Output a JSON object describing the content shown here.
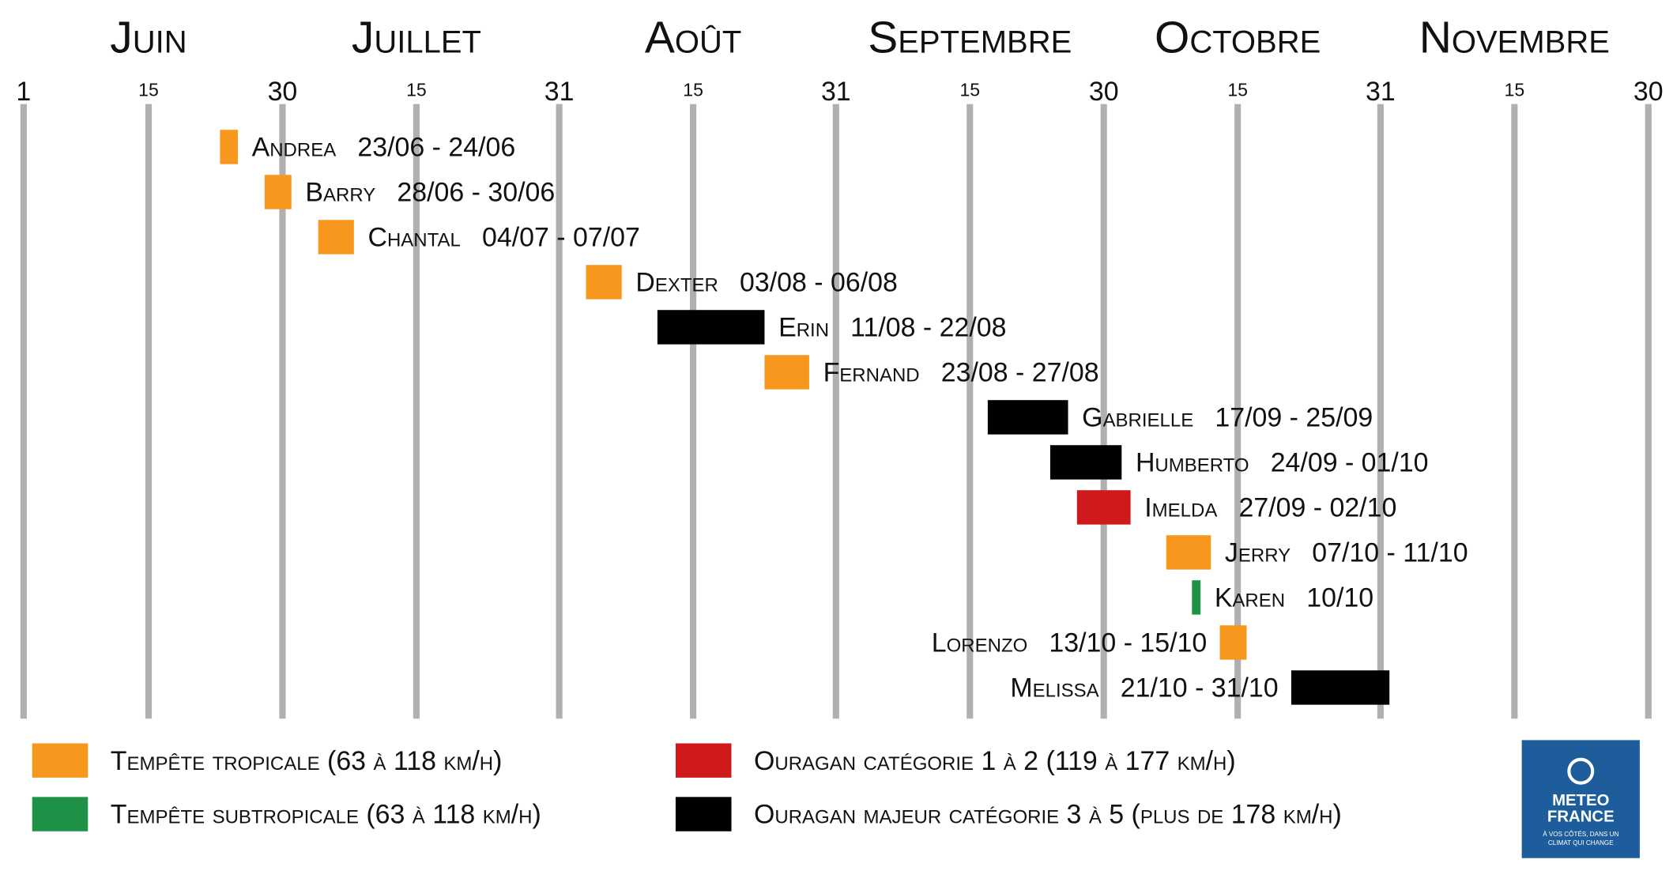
{
  "chart_data": {
    "type": "timeline",
    "months": [
      "Juin",
      "Juillet",
      "Août",
      "Septembre",
      "Octobre",
      "Novembre"
    ],
    "xlim": [
      "01/06",
      "30/11"
    ],
    "xticks": [
      {
        "value": "01/06",
        "label": "1"
      },
      {
        "value": "15/06",
        "label": "15"
      },
      {
        "value": "30/06",
        "label": "30"
      },
      {
        "value": "15/07",
        "label": "15"
      },
      {
        "value": "31/07",
        "label": "31"
      },
      {
        "value": "15/08",
        "label": "15"
      },
      {
        "value": "31/08",
        "label": "31"
      },
      {
        "value": "15/09",
        "label": "15"
      },
      {
        "value": "30/09",
        "label": "30"
      },
      {
        "value": "15/10",
        "label": "15"
      },
      {
        "value": "31/10",
        "label": "31"
      },
      {
        "value": "15/11",
        "label": "15"
      },
      {
        "value": "30/11",
        "label": "30"
      }
    ],
    "grid": true,
    "categories": [
      {
        "name": "Tempête tropicale (63 à 118 km/h)",
        "color": "#f7971e"
      },
      {
        "name": "Tempête subtropicale (63 à 118 km/h)",
        "color": "#1e9146"
      },
      {
        "name": "Ouragan catégorie 1 à 2 (119 à 177 km/h)",
        "color": "#d0191c"
      },
      {
        "name": "Ouragan majeur catégorie 3 à 5 (plus de 178 km/h)",
        "color": "#000000"
      }
    ],
    "storms": [
      {
        "name": "Andrea",
        "start": "23/06",
        "end": "24/06",
        "dates": "23/06 - 24/06",
        "category": 0,
        "label_side": "right"
      },
      {
        "name": "Barry",
        "start": "28/06",
        "end": "30/06",
        "dates": "28/06 - 30/06",
        "category": 0,
        "label_side": "right"
      },
      {
        "name": "Chantal",
        "start": "04/07",
        "end": "07/07",
        "dates": "04/07 - 07/07",
        "category": 0,
        "label_side": "right"
      },
      {
        "name": "Dexter",
        "start": "03/08",
        "end": "06/08",
        "dates": "03/08 - 06/08",
        "category": 0,
        "label_side": "right"
      },
      {
        "name": "Erin",
        "start": "11/08",
        "end": "22/08",
        "dates": "11/08 - 22/08",
        "category": 3,
        "label_side": "right"
      },
      {
        "name": "Fernand",
        "start": "23/08",
        "end": "27/08",
        "dates": "23/08 - 27/08",
        "category": 0,
        "label_side": "right"
      },
      {
        "name": "Gabrielle",
        "start": "17/09",
        "end": "25/09",
        "dates": "17/09 - 25/09",
        "category": 3,
        "label_side": "right"
      },
      {
        "name": "Humberto",
        "start": "24/09",
        "end": "01/10",
        "dates": "24/09 - 01/10",
        "category": 3,
        "label_side": "right"
      },
      {
        "name": "Imelda",
        "start": "27/09",
        "end": "02/10",
        "dates": "27/09 - 02/10",
        "category": 2,
        "label_side": "right"
      },
      {
        "name": "Jerry",
        "start": "07/10",
        "end": "11/10",
        "dates": "07/10 - 11/10",
        "category": 0,
        "label_side": "right"
      },
      {
        "name": "Karen",
        "start": "10/10",
        "end": "10/10",
        "dates": "10/10",
        "category": 1,
        "label_side": "right"
      },
      {
        "name": "Lorenzo",
        "start": "13/10",
        "end": "15/10",
        "dates": "13/10 - 15/10",
        "category": 0,
        "label_side": "left"
      },
      {
        "name": "Melissa",
        "start": "21/10",
        "end": "31/10",
        "dates": "21/10 - 31/10",
        "category": 3,
        "label_side": "left"
      }
    ],
    "logo": [
      "METEO",
      "FRANCE",
      "À VOS CÔTÉS, DANS UN",
      "CLIMAT QUI CHANGE"
    ]
  }
}
